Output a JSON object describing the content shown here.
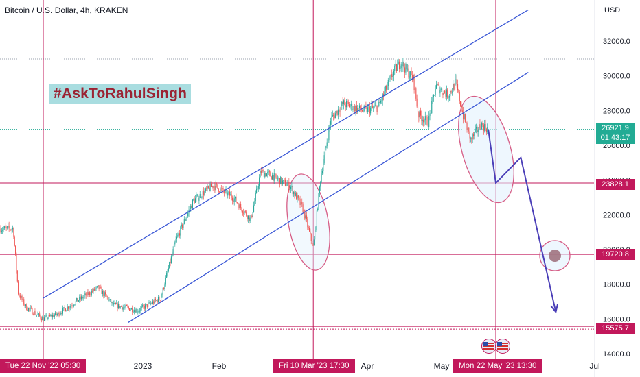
{
  "header": {
    "title": "Bitcoin / U.S. Dollar, 4h, KRAKEN",
    "currency": "USD"
  },
  "watermark": "#AskToRahulSingh",
  "price_tags": {
    "last": "26921.9",
    "countdown": "01:43:17",
    "level_mid": "23828.1",
    "level_target": "19720.8",
    "level_low": "15575.7"
  },
  "cursor_labels": {
    "d1": "Tue 22 Nov '22   05:30",
    "d2": "Fri 10 Mar '23   17:30",
    "d3": "Mon 22 May '23   13:30"
  },
  "colors": {
    "up": "#26a69a",
    "down": "#ef5350",
    "channel": "#3a57d6",
    "level": "#c2185b",
    "projection": "#4b3fb8",
    "last_tag": "#22ab94"
  },
  "chart_data": {
    "type": "candlestick",
    "title": "Bitcoin / U.S. Dollar, 4h, KRAKEN",
    "ylabel": "USD",
    "ylim": [
      14000,
      33000
    ],
    "y_ticks": [
      14000,
      16000,
      18000,
      20000,
      22000,
      24000,
      26000,
      28000,
      30000,
      32000
    ],
    "x_tick_labels": [
      "2023",
      "Feb",
      "Apr",
      "May",
      "Jul"
    ],
    "horizontal_levels": [
      23828.1,
      19720.8,
      15575.7
    ],
    "last_price": 26921.9,
    "price_path": [
      [
        "2022-11-10",
        21200
      ],
      [
        "2022-11-12",
        17500
      ],
      [
        "2022-11-15",
        16700
      ],
      [
        "2022-11-22",
        16000
      ],
      [
        "2022-11-28",
        16300
      ],
      [
        "2022-12-05",
        17000
      ],
      [
        "2022-12-14",
        17800
      ],
      [
        "2022-12-20",
        16800
      ],
      [
        "2022-12-30",
        16500
      ],
      [
        "2023-01-08",
        17200
      ],
      [
        "2023-01-14",
        20500
      ],
      [
        "2023-01-21",
        22800
      ],
      [
        "2023-01-29",
        23700
      ],
      [
        "2023-02-06",
        23000
      ],
      [
        "2023-02-13",
        21700
      ],
      [
        "2023-02-17",
        24500
      ],
      [
        "2023-02-22",
        24200
      ],
      [
        "2023-03-01",
        23600
      ],
      [
        "2023-03-06",
        22300
      ],
      [
        "2023-03-10",
        20100
      ],
      [
        "2023-03-13",
        24200
      ],
      [
        "2023-03-17",
        27500
      ],
      [
        "2023-03-22",
        28400
      ],
      [
        "2023-03-30",
        28000
      ],
      [
        "2023-04-05",
        28200
      ],
      [
        "2023-04-11",
        30200
      ],
      [
        "2023-04-14",
        30800
      ],
      [
        "2023-04-19",
        29800
      ],
      [
        "2023-04-21",
        27800
      ],
      [
        "2023-04-25",
        27300
      ],
      [
        "2023-04-28",
        29400
      ],
      [
        "2023-05-03",
        28900
      ],
      [
        "2023-05-06",
        29600
      ],
      [
        "2023-05-09",
        27700
      ],
      [
        "2023-05-12",
        26300
      ],
      [
        "2023-05-16",
        27200
      ],
      [
        "2023-05-19",
        26921.9
      ]
    ],
    "projection_path": [
      [
        "2023-05-22",
        23828.1
      ],
      [
        "2023-06-01",
        25300
      ],
      [
        "2023-06-15",
        16400
      ]
    ],
    "channel_lines": [
      {
        "from": [
          "2022-11-22",
          17200
        ],
        "to": [
          "2023-06-04",
          33800
        ]
      },
      {
        "from": [
          "2022-12-26",
          15800
        ],
        "to": [
          "2023-06-04",
          30200
        ]
      }
    ],
    "vertical_markers": [
      "2022-11-22",
      "2023-03-10",
      "2023-05-22"
    ]
  }
}
